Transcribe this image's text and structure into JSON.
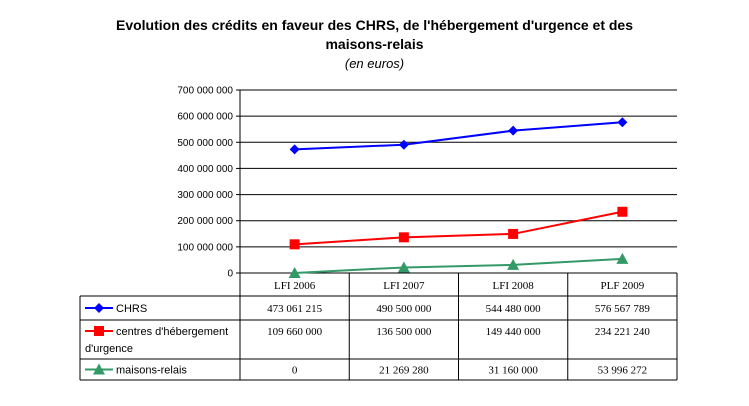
{
  "title_lines": [
    "Evolution des crédits en faveur des CHRS, de l'hébergement d'urgence et des",
    "maisons-relais"
  ],
  "subtitle": "(en euros)",
  "chart_data": {
    "type": "line",
    "categories": [
      "LFI 2006",
      "LFI 2007",
      "LFI 2008",
      "PLF 2009"
    ],
    "ylim": [
      0,
      700000000
    ],
    "yticks": [
      0,
      100000000,
      200000000,
      300000000,
      400000000,
      500000000,
      600000000,
      700000000
    ],
    "ytick_labels": [
      "0",
      "100 000 000",
      "200 000 000",
      "300 000 000",
      "400 000 000",
      "500 000 000",
      "600 000 000",
      "700 000 000"
    ],
    "grid": true,
    "legend": "data-table",
    "series": [
      {
        "name": "CHRS",
        "label_lines": [
          "CHRS"
        ],
        "color": "#0000ff",
        "marker": "diamond",
        "values": [
          473061215,
          490500000,
          544480000,
          576567789
        ],
        "value_labels": [
          "473 061 215",
          "490 500 000",
          "544 480 000",
          "576 567 789"
        ]
      },
      {
        "name": "centres d'hébergement d'urgence",
        "label_lines": [
          "centres d'hébergement",
          "d'urgence"
        ],
        "color": "#ff0000",
        "marker": "square",
        "values": [
          109660000,
          136500000,
          149440000,
          234221240
        ],
        "value_labels": [
          "109 660 000",
          "136 500 000",
          "149 440 000",
          "234 221 240"
        ]
      },
      {
        "name": "maisons-relais",
        "label_lines": [
          "maisons-relais"
        ],
        "color": "#339966",
        "marker": "triangle",
        "values": [
          0,
          21269280,
          31160000,
          53996272
        ],
        "value_labels": [
          "0",
          "21 269 280",
          "31 160 000",
          "53 996 272"
        ]
      }
    ]
  }
}
